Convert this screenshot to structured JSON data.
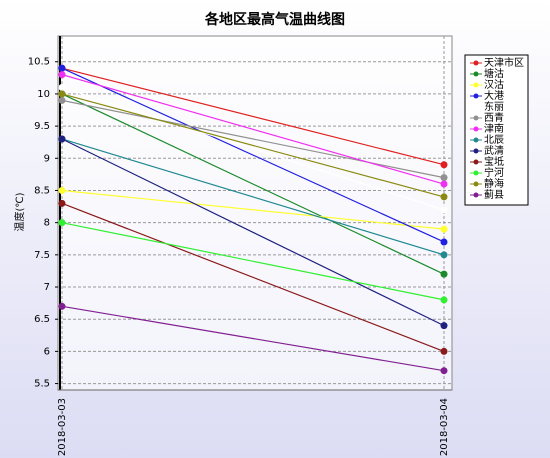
{
  "chart_data": {
    "type": "line",
    "title": "各地区最高气温曲线图",
    "y_label": "温度(℃)",
    "categories": [
      "2018-03-03",
      "2018-03-04"
    ],
    "ylim": [
      5.4,
      10.9
    ],
    "yticks": [
      5.5,
      6,
      6.5,
      7,
      7.5,
      8,
      8.5,
      9,
      9.5,
      10,
      10.5
    ],
    "grid": true,
    "series": [
      {
        "name": "天津市区",
        "color": "#e02020",
        "values": [
          10.4,
          8.9
        ]
      },
      {
        "name": "塘沽",
        "color": "#1a8a2a",
        "values": [
          10.0,
          7.2
        ]
      },
      {
        "name": "汉沽",
        "color": "#ffff30",
        "values": [
          8.5,
          7.9
        ]
      },
      {
        "name": "大港",
        "color": "#2020e0",
        "values": [
          10.4,
          7.7
        ]
      },
      {
        "name": "东丽",
        "color": "#ffffff",
        "values": [
          10.1,
          8.2
        ]
      },
      {
        "name": "西青",
        "color": "#909090",
        "values": [
          9.9,
          8.7
        ]
      },
      {
        "name": "津南",
        "color": "#f030f0",
        "values": [
          10.3,
          8.6
        ]
      },
      {
        "name": "北辰",
        "color": "#208a90",
        "values": [
          9.3,
          7.5
        ]
      },
      {
        "name": "武清",
        "color": "#202080",
        "values": [
          9.3,
          6.4
        ]
      },
      {
        "name": "宝坻",
        "color": "#8a1a1a",
        "values": [
          8.3,
          6.0
        ]
      },
      {
        "name": "宁河",
        "color": "#30f030",
        "values": [
          8.0,
          6.8
        ]
      },
      {
        "name": "静海",
        "color": "#8a8a10",
        "values": [
          10.0,
          8.4
        ]
      },
      {
        "name": "蓟县",
        "color": "#802090",
        "values": [
          6.7,
          5.7
        ]
      }
    ]
  }
}
